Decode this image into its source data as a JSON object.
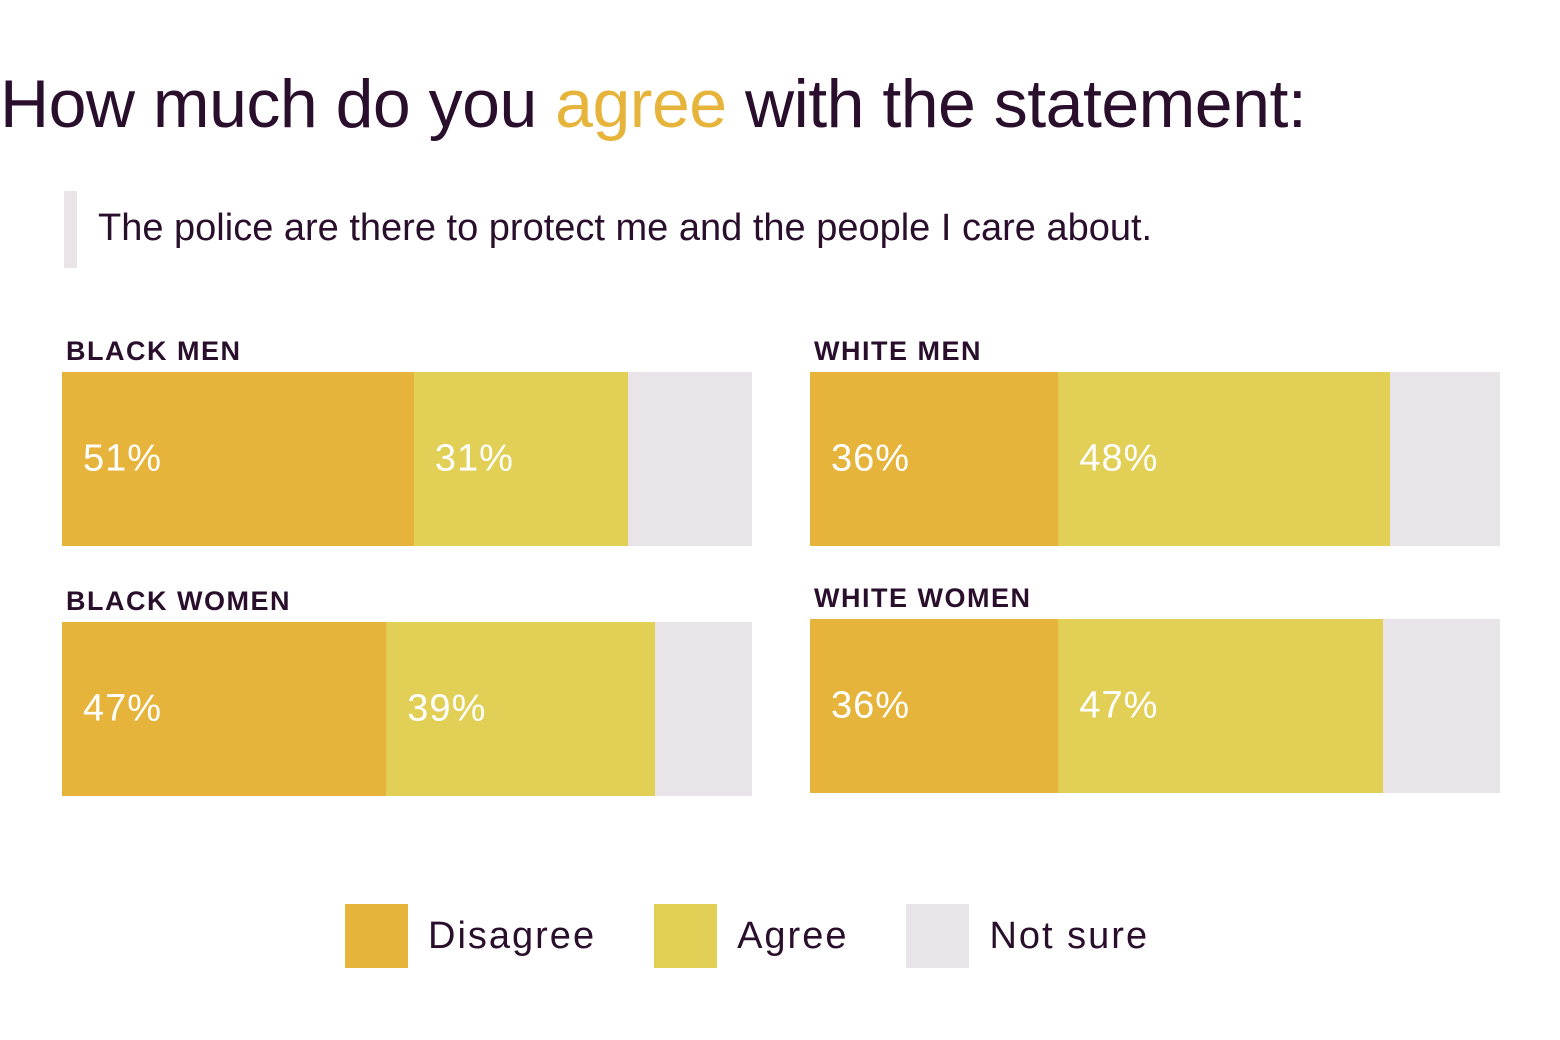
{
  "title": {
    "before": "How much do you",
    "accent": "agree",
    "after": "with the statement:"
  },
  "statement": "The police are there to protect me and the people I care about.",
  "colors": {
    "disagree": "#e6b43a",
    "agree": "#e1cf56",
    "not_sure": "#e8e4e7",
    "text": "#2a0f2c",
    "accent": "#e6b43a"
  },
  "chart_data": {
    "type": "bar",
    "stacked": true,
    "orientation": "horizontal",
    "xlim": [
      0,
      100
    ],
    "categories": [
      "BLACK MEN",
      "WHITE MEN",
      "BLACK WOMEN",
      "WHITE WOMEN"
    ],
    "series": [
      {
        "name": "Disagree",
        "values": [
          51,
          36,
          47,
          36
        ]
      },
      {
        "name": "Agree",
        "values": [
          31,
          48,
          39,
          47
        ]
      },
      {
        "name": "Not sure",
        "values": [
          18,
          16,
          14,
          17
        ]
      }
    ],
    "data_labels": [
      [
        "51%",
        "31%"
      ],
      [
        "36%",
        "48%"
      ],
      [
        "47%",
        "39%"
      ],
      [
        "36%",
        "47%"
      ]
    ],
    "legend": {
      "position": "bottom",
      "entries": [
        "Disagree",
        "Agree",
        "Not sure"
      ]
    }
  }
}
